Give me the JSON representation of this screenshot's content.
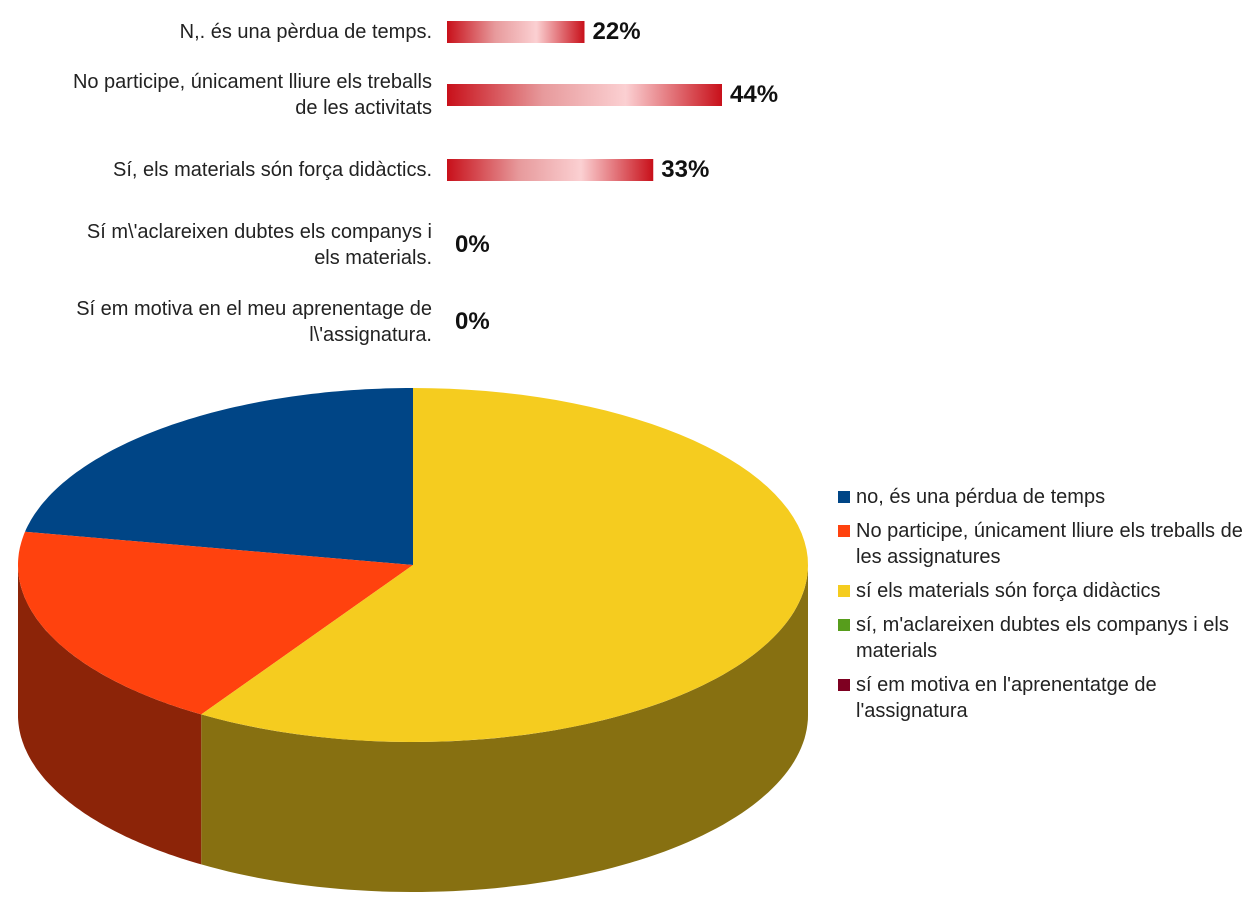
{
  "chart_data": [
    {
      "type": "bar",
      "orientation": "horizontal",
      "categories": [
        "N,. és una pèrdua de temps.",
        "No participe, únicament lliure els treballs de les activitats",
        "Sí, els materials són força didàctics.",
        "Sí m\\'aclareixen dubtes els companys i els materials.",
        "Sí em motiva en el meu aprenentage de l\\'assignatura."
      ],
      "values": [
        22,
        44,
        33,
        0,
        0
      ],
      "value_labels": [
        "22%",
        "44%",
        "33%",
        "0%",
        "0%"
      ],
      "color": "#c8101a"
    },
    {
      "type": "pie",
      "categories": [
        "no, és una pérdua de temps",
        "No participe, únicament lliure els treballs de les assignatures",
        "sí els materials són força didàctics",
        "sí, m'aclareixen dubtes els companys i els materials",
        "sí em motiva en l'aprenentatge de l'assignatura"
      ],
      "values": [
        22,
        19,
        59,
        0,
        0
      ],
      "colors": [
        "#004586",
        "#ff420e",
        "#f5cc1f",
        "#579d1c",
        "#7e0021"
      ]
    }
  ]
}
